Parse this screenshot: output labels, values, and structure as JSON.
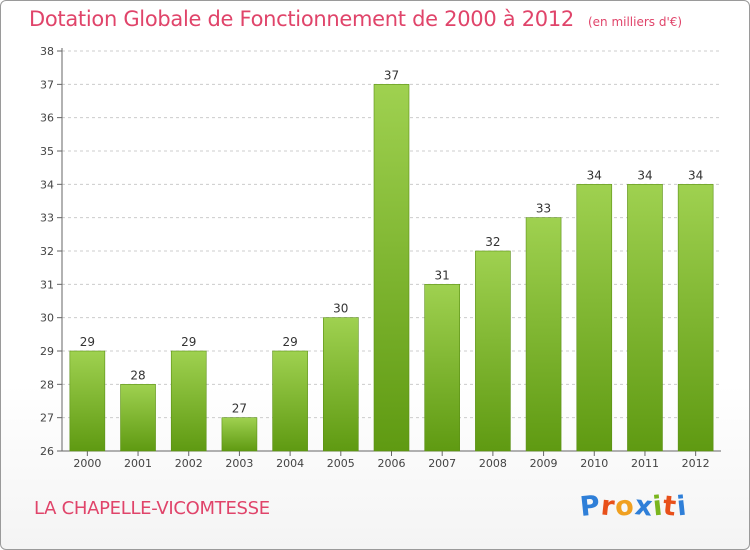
{
  "title": "Dotation Globale de Fonctionnement de 2000 à 2012",
  "subtitle": "(en milliers d'€)",
  "place": "LA CHAPELLE-VICOMTESSE",
  "brand": {
    "letters": [
      "P",
      "r",
      "o",
      "x",
      "i",
      "t",
      "i"
    ],
    "colors": [
      "#2f7fd8",
      "#e8501a",
      "#f0a020",
      "#2f7fd8",
      "#7ab51d",
      "#e8501a",
      "#2f7fd8"
    ]
  },
  "colors": {
    "title": "#e0446a",
    "bar_top": "#9fd150",
    "bar_bottom": "#5f9a12",
    "grid": "#cccccc"
  },
  "chart_data": {
    "type": "bar",
    "categories": [
      "2000",
      "2001",
      "2002",
      "2003",
      "2004",
      "2005",
      "2006",
      "2007",
      "2008",
      "2009",
      "2010",
      "2011",
      "2012"
    ],
    "values": [
      29,
      28,
      29,
      27,
      29,
      30,
      37,
      31,
      32,
      33,
      34,
      34,
      34
    ],
    "title": "Dotation Globale de Fonctionnement de 2000 à 2012",
    "subtitle": "(en milliers d'€)",
    "xlabel": "",
    "ylabel": "",
    "ylim": [
      26,
      38
    ],
    "yticks": [
      26,
      27,
      28,
      29,
      30,
      31,
      32,
      33,
      34,
      35,
      36,
      37,
      38
    ],
    "grid": "horizontal dashed",
    "legend": "none"
  }
}
